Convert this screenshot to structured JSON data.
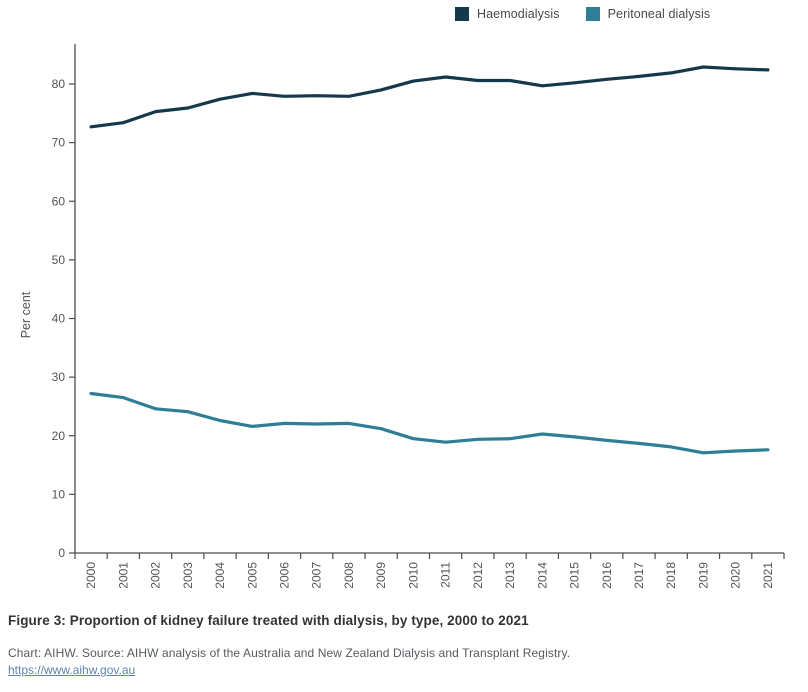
{
  "legend": {
    "items": [
      {
        "label": "Haemodialysis",
        "color": "#16384c"
      },
      {
        "label": "Peritoneal dialysis",
        "color": "#2e7f96"
      }
    ]
  },
  "chart_data": {
    "type": "line",
    "title": "Figure 3: Proportion of kidney failure treated with dialysis, by type, 2000 to 2021",
    "xlabel": "",
    "ylabel": "Per cent",
    "ylim": [
      0,
      87
    ],
    "y_ticks": [
      "0",
      "10",
      "20",
      "30",
      "40",
      "50",
      "60",
      "70",
      "80"
    ],
    "grid": false,
    "legend_position": "top-right",
    "categories": [
      "2000",
      "2001",
      "2002",
      "2003",
      "2004",
      "2005",
      "2006",
      "2007",
      "2008",
      "2009",
      "2010",
      "2011",
      "2012",
      "2013",
      "2014",
      "2015",
      "2016",
      "2017",
      "2018",
      "2019",
      "2020",
      "2021"
    ],
    "series": [
      {
        "name": "Haemodialysis",
        "color": "#16384c",
        "values": [
          72.7,
          73.4,
          75.3,
          75.9,
          77.4,
          78.4,
          77.9,
          78.0,
          77.9,
          79.0,
          80.5,
          81.2,
          80.6,
          80.6,
          79.7,
          80.2,
          80.8,
          81.3,
          81.9,
          82.9,
          82.6,
          82.4
        ]
      },
      {
        "name": "Peritoneal dialysis",
        "color": "#2e7f96",
        "values": [
          27.2,
          26.5,
          24.6,
          24.1,
          22.6,
          21.6,
          22.1,
          22.0,
          22.1,
          21.2,
          19.5,
          18.9,
          19.4,
          19.5,
          20.3,
          19.8,
          19.2,
          18.7,
          18.1,
          17.1,
          17.4,
          17.6
        ]
      }
    ]
  },
  "caption": {
    "title": "Figure 3: Proportion of kidney failure treated with dialysis, by type, 2000 to 2021",
    "source": "Chart: AIHW. Source: AIHW analysis of the Australia and New Zealand Dialysis and Transplant Registry.",
    "link": "https://www.aihw.gov.au"
  },
  "colors": {
    "axis": "#4d4d4d",
    "tick_label": "#555555",
    "axis_title": "#555555",
    "background": "#ffffff",
    "link": "#5b84b1"
  }
}
